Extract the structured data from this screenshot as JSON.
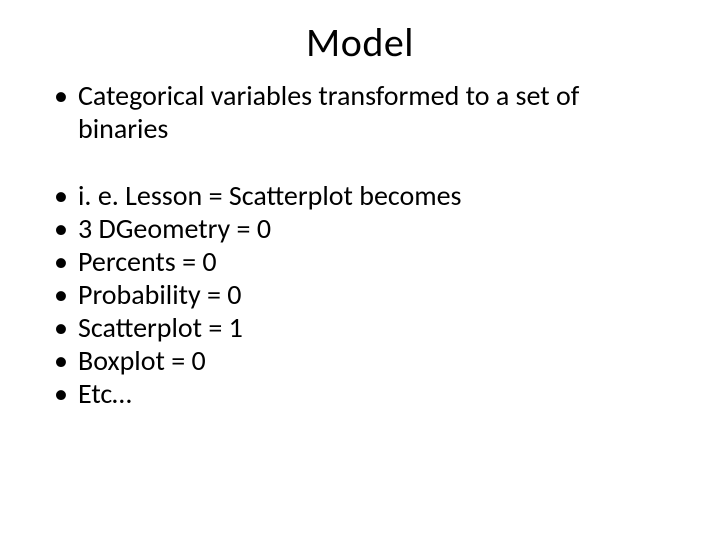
{
  "title": "Model",
  "group1": [
    "Categorical variables transformed to a set of binaries"
  ],
  "group2": [
    "i. e. Lesson = Scatterplot becomes",
    "3 DGeometry = 0",
    "Percents = 0",
    "Probability = 0",
    "Scatterplot = 1",
    "Boxplot = 0",
    "Etc…"
  ],
  "text_color": "#000000",
  "background_color": "#ffffff",
  "title_fontsize": 40,
  "body_fontsize": 28
}
